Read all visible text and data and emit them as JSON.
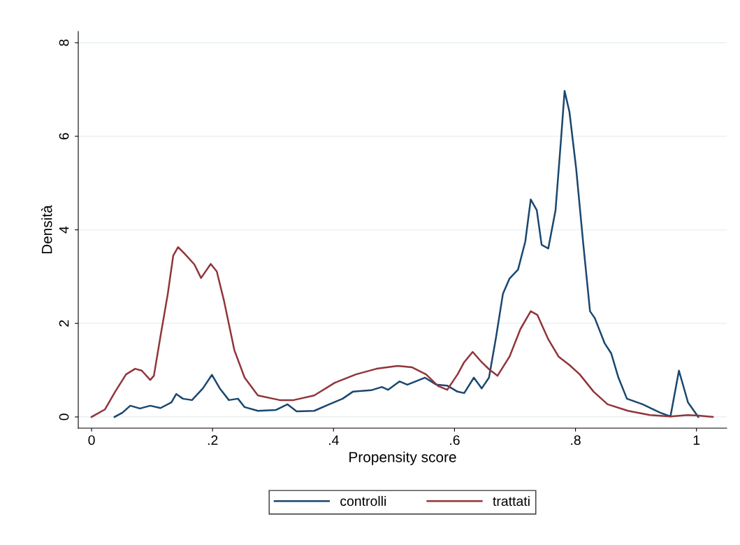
{
  "chart_data": {
    "type": "line",
    "xlabel": "Propensity score",
    "ylabel": "Densità",
    "xlim": [
      -0.022,
      1.05
    ],
    "ylim": [
      -0.24,
      8.24
    ],
    "xticks": [
      0,
      {
        "value": 0.2,
        "label": ".2"
      },
      {
        "value": 0.4,
        "label": ".4"
      },
      {
        "value": 0.6,
        "label": ".6"
      },
      {
        "value": 0.8,
        "label": ".8"
      },
      1
    ],
    "yticks": [
      0,
      2,
      4,
      6,
      8
    ],
    "grid": "y",
    "legend": "bottom",
    "marker": "none",
    "line_style": "solid",
    "series": [
      {
        "name": "controlli",
        "color": "#1a476f",
        "x": [
          0.038,
          0.051,
          0.064,
          0.08,
          0.097,
          0.114,
          0.132,
          0.14,
          0.151,
          0.166,
          0.184,
          0.199,
          0.212,
          0.227,
          0.242,
          0.253,
          0.275,
          0.305,
          0.324,
          0.339,
          0.368,
          0.393,
          0.415,
          0.432,
          0.462,
          0.48,
          0.49,
          0.509,
          0.522,
          0.551,
          0.57,
          0.588,
          0.605,
          0.616,
          0.632,
          0.645,
          0.657,
          0.669,
          0.68,
          0.691,
          0.705,
          0.717,
          0.726,
          0.736,
          0.744,
          0.755,
          0.767,
          0.776,
          0.782,
          0.79,
          0.801,
          0.813,
          0.824,
          0.832,
          0.848,
          0.859,
          0.871,
          0.885,
          0.911,
          0.94,
          0.957,
          0.971,
          0.986,
          1.003
        ],
        "values": [
          0,
          0.09,
          0.24,
          0.18,
          0.24,
          0.19,
          0.31,
          0.49,
          0.39,
          0.36,
          0.61,
          0.9,
          0.61,
          0.36,
          0.39,
          0.21,
          0.13,
          0.15,
          0.27,
          0.12,
          0.13,
          0.27,
          0.39,
          0.54,
          0.57,
          0.64,
          0.58,
          0.76,
          0.69,
          0.84,
          0.69,
          0.67,
          0.54,
          0.51,
          0.84,
          0.61,
          0.84,
          1.73,
          2.63,
          2.96,
          3.15,
          3.75,
          4.65,
          4.42,
          3.68,
          3.6,
          4.42,
          5.92,
          6.97,
          6.52,
          5.32,
          3.68,
          2.26,
          2.11,
          1.58,
          1.36,
          0.84,
          0.39,
          0.27,
          0.09,
          0.01,
          0.99,
          0.31,
          0
        ]
      },
      {
        "name": "trattati",
        "color": "#90353b",
        "x": [
          0,
          0.022,
          0.039,
          0.057,
          0.072,
          0.083,
          0.097,
          0.103,
          0.114,
          0.126,
          0.135,
          0.143,
          0.153,
          0.17,
          0.181,
          0.197,
          0.207,
          0.219,
          0.236,
          0.253,
          0.275,
          0.311,
          0.334,
          0.368,
          0.402,
          0.437,
          0.471,
          0.506,
          0.53,
          0.553,
          0.573,
          0.588,
          0.605,
          0.616,
          0.63,
          0.645,
          0.657,
          0.671,
          0.691,
          0.709,
          0.726,
          0.737,
          0.755,
          0.772,
          0.79,
          0.807,
          0.83,
          0.853,
          0.887,
          0.923,
          0.957,
          0.986,
          1.003,
          1.027
        ],
        "values": [
          0,
          0.16,
          0.54,
          0.91,
          1.03,
          0.99,
          0.79,
          0.88,
          1.73,
          2.63,
          3.45,
          3.63,
          3.5,
          3.26,
          2.97,
          3.27,
          3.11,
          2.48,
          1.43,
          0.84,
          0.46,
          0.36,
          0.36,
          0.46,
          0.73,
          0.91,
          1.03,
          1.09,
          1.06,
          0.91,
          0.66,
          0.58,
          0.91,
          1.17,
          1.39,
          1.17,
          1.02,
          0.88,
          1.29,
          1.88,
          2.26,
          2.18,
          1.66,
          1.29,
          1.11,
          0.91,
          0.54,
          0.27,
          0.13,
          0.04,
          0.01,
          0.04,
          0.03,
          0
        ]
      }
    ]
  }
}
